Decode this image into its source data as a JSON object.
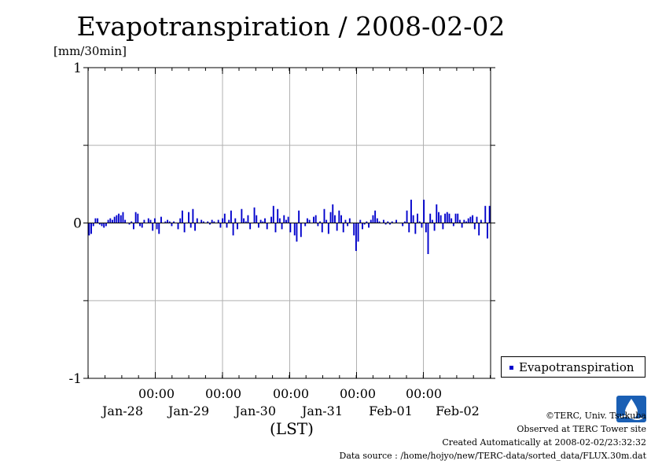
{
  "page": {
    "title": "Evapotranspiration / 2008-02-02",
    "unit_label": "[mm/30min]",
    "x_unit": "(LST)",
    "legend_label": "Evapotranspiration",
    "credits": {
      "line1": "©TERC, Univ. Tsukuba",
      "line2": "Observed at TERC Tower site",
      "line3": "Created Automatically at 2008-02-02/23:32:32",
      "line4": "Data source : /home/hojyo/new/TERC-data/sorted_data/FLUX.30m.dat"
    }
  },
  "chart_data": {
    "type": "bar",
    "title": "Evapotranspiration / 2008-02-02",
    "ylabel": "[mm/30min]",
    "xlabel": "(LST)",
    "ylim": [
      -1,
      1
    ],
    "y_ticks": [
      "1",
      "0",
      "-1"
    ],
    "x_ticks": [
      {
        "time": "00:00",
        "date": "Jan-28"
      },
      {
        "time": "00:00",
        "date": "Jan-29"
      },
      {
        "time": "00:00",
        "date": "Jan-30"
      },
      {
        "time": "00:00",
        "date": "Jan-31"
      },
      {
        "time": "00:00",
        "date": "Feb-01"
      },
      {
        "time": "00:00",
        "date": "Feb-02"
      }
    ],
    "grid": true,
    "legend_position": "right",
    "series": [
      {
        "name": "Evapotranspiration",
        "color": "#0000cc",
        "values": [
          -0.08,
          -0.07,
          -0.02,
          0.03,
          0.03,
          -0.01,
          -0.02,
          -0.03,
          -0.02,
          0.02,
          0.03,
          0.02,
          0.04,
          0.05,
          0.06,
          0.05,
          0.07,
          0.02,
          0.0,
          -0.01,
          0.01,
          -0.04,
          0.07,
          0.06,
          -0.02,
          -0.03,
          0.02,
          0.0,
          0.03,
          0.02,
          -0.05,
          0.03,
          -0.04,
          -0.07,
          0.04,
          0.0,
          0.01,
          0.02,
          0.01,
          -0.02,
          0.01,
          0.0,
          -0.04,
          0.03,
          0.08,
          -0.06,
          0.0,
          0.07,
          -0.03,
          0.09,
          -0.05,
          0.03,
          0.0,
          0.02,
          0.01,
          0.0,
          0.01,
          -0.01,
          0.02,
          0.01,
          0.0,
          0.02,
          -0.03,
          0.03,
          0.06,
          -0.03,
          0.02,
          0.08,
          -0.08,
          0.03,
          -0.04,
          0.0,
          0.09,
          0.03,
          0.01,
          0.05,
          -0.04,
          0.0,
          0.1,
          0.05,
          -0.03,
          0.02,
          0.01,
          0.03,
          -0.04,
          0.0,
          0.04,
          0.11,
          -0.06,
          0.09,
          0.03,
          -0.04,
          0.05,
          0.02,
          0.04,
          -0.06,
          0.0,
          -0.08,
          -0.12,
          0.08,
          -0.09,
          0.0,
          -0.02,
          0.03,
          0.02,
          0.0,
          0.04,
          0.05,
          -0.02,
          0.01,
          -0.06,
          0.09,
          0.02,
          -0.07,
          0.07,
          0.12,
          0.05,
          -0.05,
          0.08,
          0.05,
          -0.06,
          0.02,
          -0.02,
          0.03,
          0.0,
          -0.08,
          -0.18,
          -0.12,
          0.02,
          -0.04,
          -0.01,
          0.01,
          -0.03,
          0.02,
          0.05,
          0.08,
          0.03,
          0.01,
          0.0,
          0.02,
          -0.01,
          0.01,
          -0.01,
          0.01,
          0.0,
          0.02,
          0.0,
          0.0,
          -0.02,
          0.01,
          0.08,
          -0.06,
          0.15,
          0.05,
          -0.07,
          0.06,
          0.01,
          -0.03,
          0.15,
          -0.06,
          -0.2,
          0.06,
          0.02,
          -0.05,
          0.12,
          0.07,
          0.05,
          -0.04,
          0.06,
          0.07,
          0.06,
          0.03,
          -0.02,
          0.06,
          0.06,
          0.02,
          -0.03,
          0.02,
          0.01,
          0.03,
          0.04,
          0.05,
          -0.04,
          0.04,
          -0.08,
          0.02,
          0.0,
          0.11,
          -0.1,
          0.11
        ]
      }
    ]
  }
}
